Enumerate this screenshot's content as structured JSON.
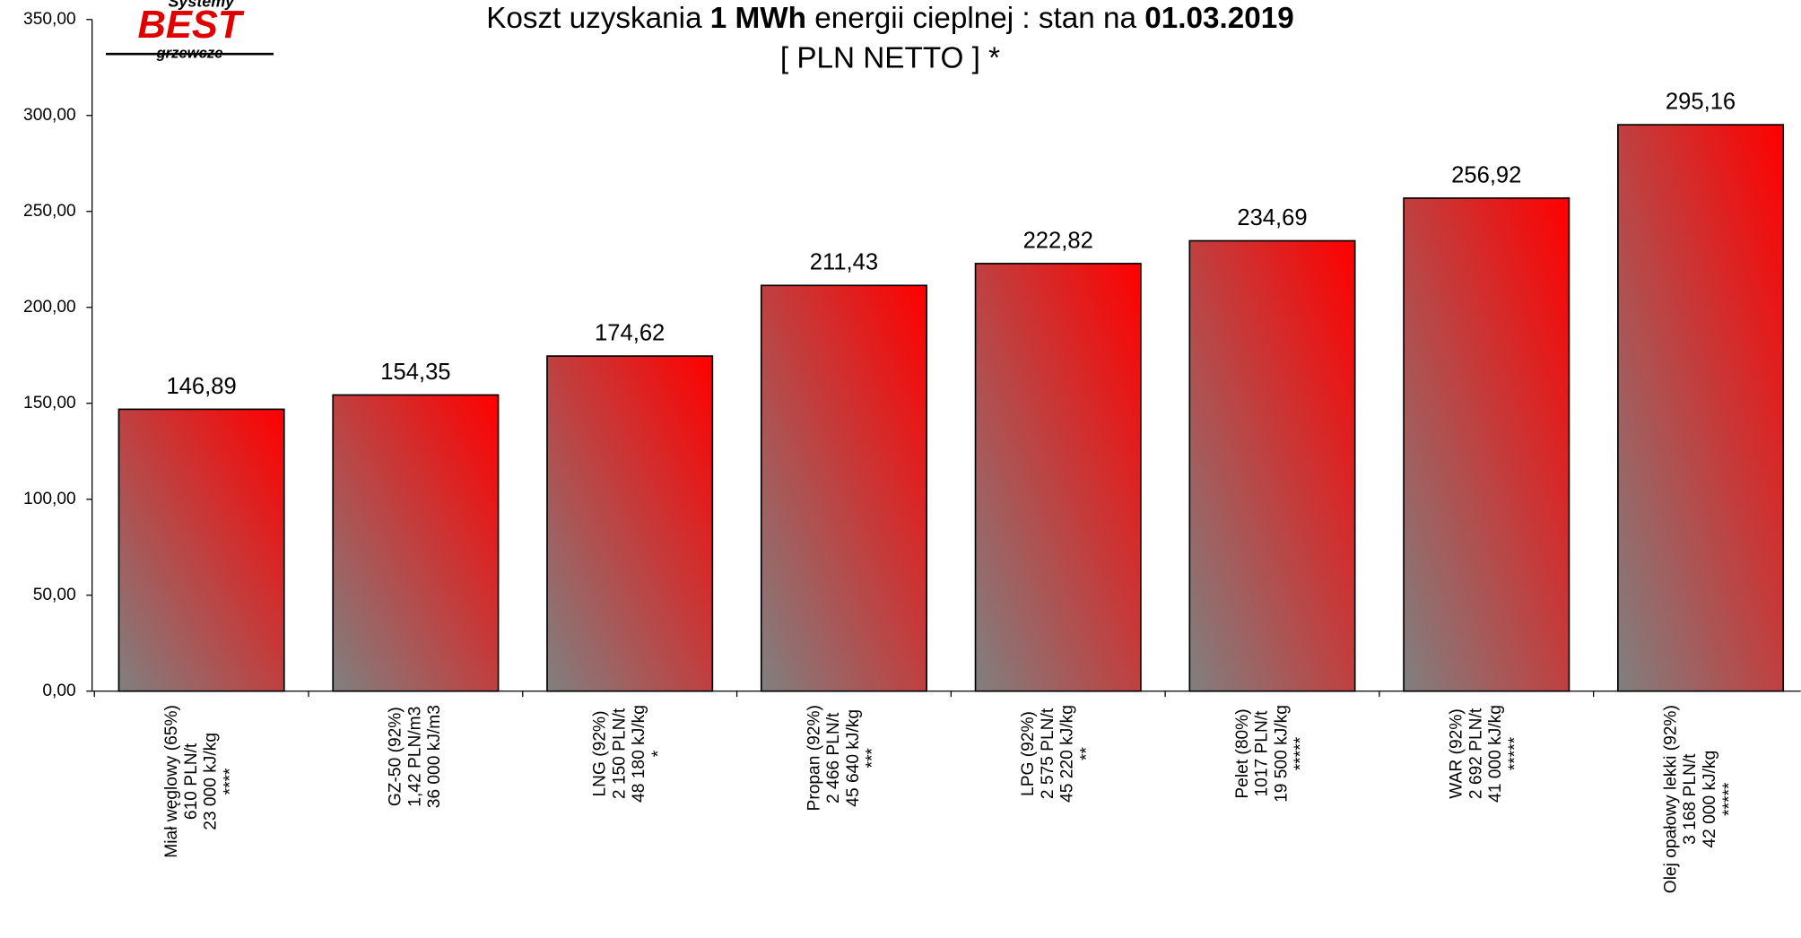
{
  "chart_data": {
    "type": "bar",
    "logo": [
      "Systemy",
      "BEST",
      "grzewcze"
    ],
    "title": [
      "Koszt uzyskania ",
      "1 MWh",
      " energii cieplnej : stan na ",
      "01.03.2019"
    ],
    "subtitle": "[ PLN NETTO ] *",
    "categories": [
      [
        "Miał węglowy (65%)",
        "610 PLN/t",
        "23 000 kJ/kg",
        "****"
      ],
      [
        "GZ-50 (92%)",
        "1,42 PLN/m3",
        "36 000 kJ/m3"
      ],
      [
        "LNG (92%)",
        "2 150 PLN/t",
        "48 180 kJ/kg",
        "*"
      ],
      [
        "Propan (92%)",
        "2 466 PLN/t",
        "45 640 kJ/kg",
        "***"
      ],
      [
        "LPG (92%)",
        "2 575 PLN/t",
        "45 220 kJ/kg",
        "**"
      ],
      [
        "Pelet (80%)",
        "1017 PLN/t",
        "19 500 kJ/kg",
        "*****"
      ],
      [
        "WAR (92%)",
        "2 692 PLN/t",
        "41 000 kJ/kg",
        "*****"
      ],
      [
        "Olej opałowy lekki (92%)",
        "3 168 PLN/t",
        "42 000 kJ/kg",
        "*****"
      ]
    ],
    "values": [
      146.89,
      154.35,
      174.62,
      211.43,
      222.82,
      234.69,
      256.92,
      295.16
    ],
    "value_labels": [
      "146,89",
      "154,35",
      "174,62",
      "211,43",
      "222,82",
      "234,69",
      "256,92",
      "295,16"
    ],
    "color": [
      "#808080",
      "#ff0000"
    ],
    "ylim": [
      0,
      350
    ],
    "yticks": [
      {
        "value": 0,
        "label": "0,00"
      },
      {
        "value": 50,
        "label": "50,00"
      },
      {
        "value": 100,
        "label": "100,00"
      },
      {
        "value": 150,
        "label": "150,00"
      },
      {
        "value": 200,
        "label": "200,00"
      },
      {
        "value": 250,
        "label": "250,00"
      },
      {
        "value": 300,
        "label": "300,00"
      },
      {
        "value": 350,
        "label": "350,00"
      }
    ]
  }
}
